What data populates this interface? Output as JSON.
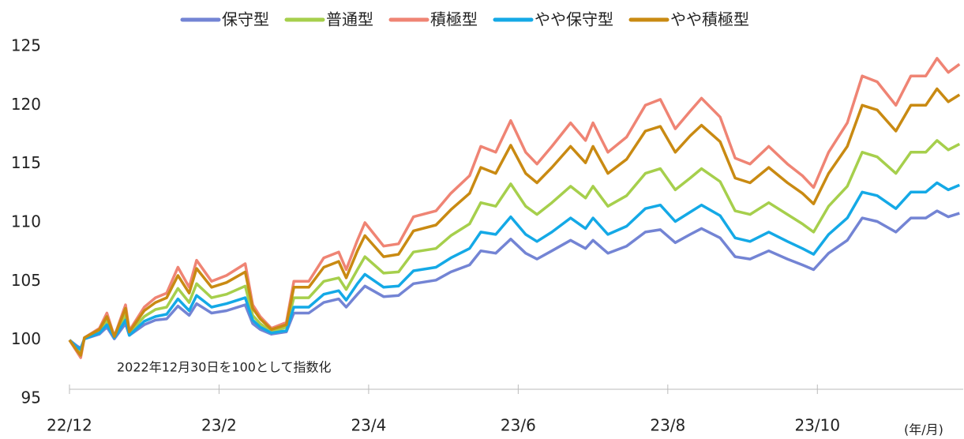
{
  "chart_data": {
    "type": "line",
    "annotation": "2022年12月30日を100として指数化",
    "x_axis_label": "(年/月)",
    "x": [
      0,
      0.1,
      0.15,
      0.2,
      0.4,
      0.5,
      0.6,
      0.75,
      0.8,
      1.0,
      1.15,
      1.3,
      1.45,
      1.6,
      1.7,
      1.9,
      2.1,
      2.35,
      2.45,
      2.55,
      2.7,
      2.9,
      3.0,
      3.2,
      3.4,
      3.6,
      3.7,
      3.85,
      3.95,
      4.2,
      4.4,
      4.6,
      4.9,
      5.1,
      5.35,
      5.5,
      5.7,
      5.9,
      6.1,
      6.25,
      6.45,
      6.7,
      6.9,
      7.0,
      7.2,
      7.45,
      7.7,
      7.9,
      8.1,
      8.3,
      8.45,
      8.7,
      8.9,
      9.1,
      9.35,
      9.6,
      9.8,
      9.95,
      10.15,
      10.4,
      10.6,
      10.8,
      11.05,
      11.25,
      11.45,
      11.6,
      11.75,
      11.9
    ],
    "series": [
      {
        "name": "保守型",
        "color": "#7384d4",
        "values": [
          100,
          99.5,
          99.3,
          100.1,
          100.5,
          101.1,
          100.1,
          101.4,
          100.4,
          101.3,
          101.7,
          101.8,
          102.9,
          102.1,
          103.1,
          102.3,
          102.5,
          103,
          101.4,
          100.9,
          100.5,
          100.7,
          102.3,
          102.3,
          103.2,
          103.5,
          102.8,
          103.9,
          104.6,
          103.7,
          103.8,
          104.8,
          105.1,
          105.8,
          106.4,
          107.6,
          107.4,
          108.6,
          107.4,
          106.9,
          107.6,
          108.5,
          107.8,
          108.5,
          107.4,
          108,
          109.2,
          109.4,
          108.3,
          109,
          109.5,
          108.7,
          107.1,
          106.9,
          107.6,
          106.9,
          106.4,
          106,
          107.4,
          108.5,
          110.4,
          110.1,
          109.2,
          110.4,
          110.4,
          111,
          110.5,
          110.8
        ]
      },
      {
        "name": "普通型",
        "color": "#a6cf4c",
        "values": [
          100,
          99.3,
          98.9,
          100.1,
          100.7,
          101.6,
          100.2,
          102.1,
          100.6,
          102,
          102.6,
          102.8,
          104.4,
          103.2,
          104.8,
          103.6,
          103.9,
          104.6,
          102.1,
          101.4,
          100.7,
          101.1,
          103.6,
          103.6,
          105,
          105.3,
          104.3,
          106,
          107.1,
          105.7,
          105.8,
          107.5,
          107.8,
          108.9,
          109.9,
          111.7,
          111.4,
          113.3,
          111.4,
          110.7,
          111.7,
          113.1,
          112.1,
          113.1,
          111.4,
          112.3,
          114.2,
          114.6,
          112.8,
          113.8,
          114.6,
          113.5,
          111,
          110.7,
          111.7,
          110.7,
          109.9,
          109.2,
          111.4,
          113.1,
          116,
          115.6,
          114.2,
          116,
          116,
          117,
          116.2,
          116.7
        ]
      },
      {
        "name": "積極型",
        "color": "#ef8474",
        "values": [
          100,
          99,
          98.5,
          100.2,
          101,
          102.3,
          100.3,
          103,
          100.8,
          102.8,
          103.6,
          104,
          106.2,
          104.5,
          106.8,
          105,
          105.5,
          106.5,
          103,
          102,
          101,
          101.5,
          105,
          105,
          107,
          107.5,
          106,
          108.5,
          110,
          108,
          108.2,
          110.5,
          111,
          112.5,
          114,
          116.5,
          116,
          118.7,
          116,
          115,
          116.5,
          118.5,
          117,
          118.5,
          116,
          117.3,
          120,
          120.5,
          118,
          119.5,
          120.6,
          119,
          115.5,
          115,
          116.5,
          115,
          114,
          113,
          116,
          118.5,
          122.5,
          122,
          120,
          122.5,
          122.5,
          124,
          122.8,
          123.5
        ]
      },
      {
        "name": "やや保守型",
        "color": "#14a9e6",
        "values": [
          100,
          99.4,
          99.2,
          100.1,
          100.6,
          101.3,
          100.2,
          101.7,
          100.4,
          101.6,
          102,
          102.2,
          103.5,
          102.5,
          103.8,
          102.8,
          103.1,
          103.6,
          101.7,
          101.1,
          100.6,
          100.8,
          102.8,
          102.8,
          103.9,
          104.2,
          103.4,
          104.8,
          105.6,
          104.5,
          104.6,
          105.9,
          106.2,
          107,
          107.8,
          109.2,
          109,
          110.5,
          109,
          108.4,
          109.2,
          110.4,
          109.5,
          110.4,
          109,
          109.7,
          111.2,
          111.5,
          110.1,
          110.9,
          111.5,
          110.6,
          108.7,
          108.4,
          109.2,
          108.4,
          107.8,
          107.3,
          109,
          110.4,
          112.6,
          112.3,
          111.2,
          112.6,
          112.6,
          113.4,
          112.8,
          113.2
        ]
      },
      {
        "name": "やや積極型",
        "color": "#c98a12",
        "values": [
          100,
          99.1,
          98.7,
          100.2,
          100.9,
          102,
          100.3,
          102.7,
          100.7,
          102.5,
          103.2,
          103.6,
          105.5,
          104,
          106.1,
          104.5,
          104.9,
          105.8,
          102.7,
          101.8,
          100.9,
          101.3,
          104.5,
          104.5,
          106.2,
          106.7,
          105.3,
          107.6,
          108.9,
          107.1,
          107.3,
          109.3,
          109.8,
          111.1,
          112.5,
          114.7,
          114.2,
          116.6,
          114.2,
          113.4,
          114.7,
          116.5,
          115.1,
          116.5,
          114.2,
          115.4,
          117.8,
          118.2,
          116,
          117.4,
          118.3,
          116.9,
          113.8,
          113.4,
          114.7,
          113.4,
          112.5,
          111.6,
          114.2,
          116.5,
          120,
          119.6,
          117.8,
          120,
          120,
          121.4,
          120.3,
          120.9
        ]
      }
    ],
    "xlim": [
      0,
      11.95
    ],
    "xticks": [
      {
        "value": 0,
        "label": "22/12"
      },
      {
        "value": 2,
        "label": "23/2"
      },
      {
        "value": 4,
        "label": "23/4"
      },
      {
        "value": 6,
        "label": "23/6"
      },
      {
        "value": 8,
        "label": "23/8"
      },
      {
        "value": 10,
        "label": "23/10"
      }
    ],
    "ylim": [
      95,
      125
    ],
    "yticks": [
      95,
      100,
      105,
      110,
      115,
      120,
      125
    ],
    "grid": false,
    "legend": "top"
  }
}
